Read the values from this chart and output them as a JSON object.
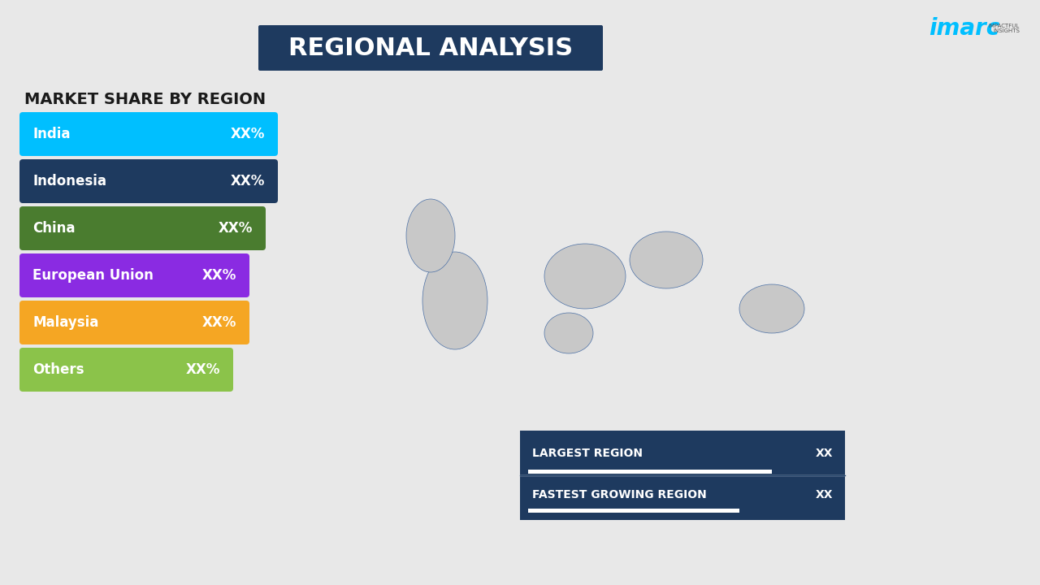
{
  "title": "REGIONAL ANALYSIS",
  "title_bg_color": "#1e3a5f",
  "title_text_color": "#ffffff",
  "background_color": "#e8e8e8",
  "subtitle": "MARKET SHARE BY REGION",
  "regions": [
    "India",
    "Indonesia",
    "China",
    "European Union",
    "Malaysia",
    "Others"
  ],
  "region_values": [
    "XX%",
    "XX%",
    "XX%",
    "XX%",
    "XX%",
    "XX%"
  ],
  "region_colors": [
    "#00bfff",
    "#1e3a5f",
    "#4a7c2f",
    "#8a2be2",
    "#f5a623",
    "#8bc34a"
  ],
  "info_box_bg": "#1e3a5f",
  "info_box_text_color": "#ffffff",
  "info_box_label1": "LARGEST REGION",
  "info_box_value1": "XX",
  "info_box_label2": "FASTEST GROWING REGION",
  "info_box_value2": "XX",
  "map_bg_color": "#e8e8e8",
  "map_land_color": "#c8c8c8",
  "map_border_color": "#4a6fa5"
}
